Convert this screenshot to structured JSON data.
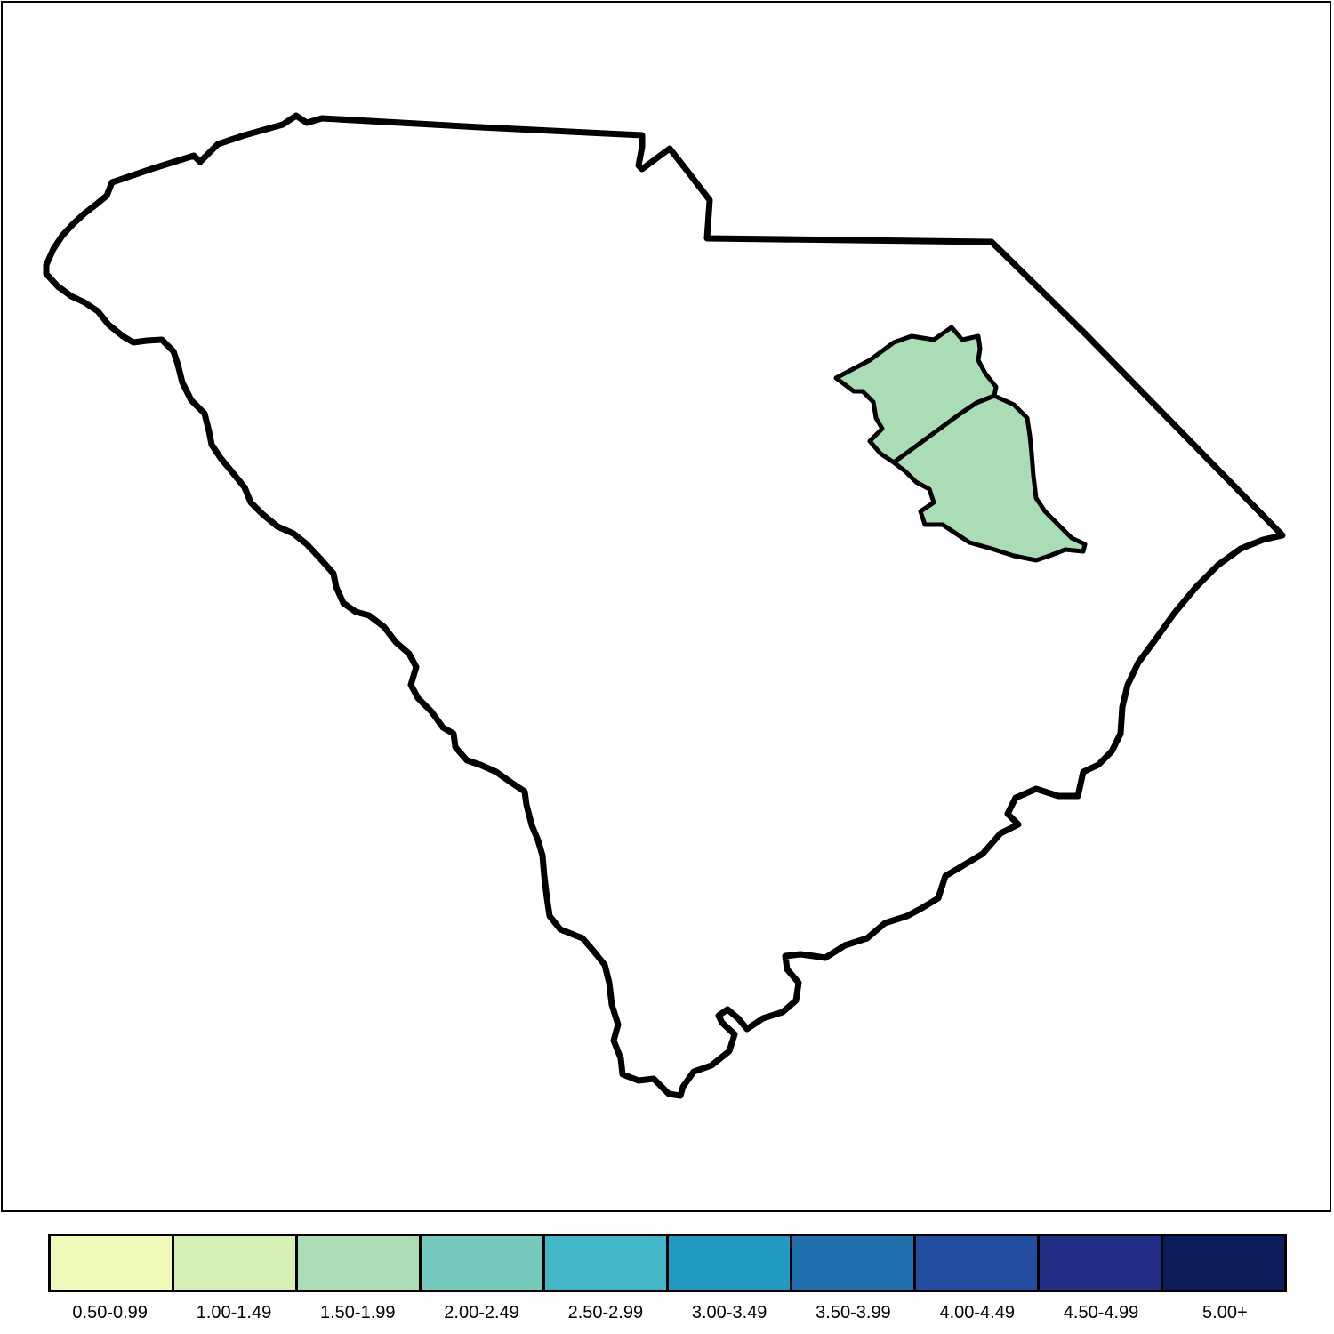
{
  "map": {
    "region": "South Carolina",
    "highlighted_regions": [
      {
        "name": "county-north",
        "class_index": 2
      },
      {
        "name": "county-south",
        "class_index": 2
      }
    ]
  },
  "legend": {
    "items": [
      {
        "label": "0.50-0.99",
        "color": "#f1f9b9"
      },
      {
        "label": "1.00-1.49",
        "color": "#d6efb2"
      },
      {
        "label": "1.50-1.99",
        "color": "#aadcb5"
      },
      {
        "label": "2.00-2.49",
        "color": "#74c8bc"
      },
      {
        "label": "2.50-2.99",
        "color": "#42b5c6"
      },
      {
        "label": "3.00-3.49",
        "color": "#2299c0"
      },
      {
        "label": "3.50-3.99",
        "color": "#2170ae"
      },
      {
        "label": "4.00-4.49",
        "color": "#234da0"
      },
      {
        "label": "4.50-4.99",
        "color": "#222d86"
      },
      {
        "label": "5.00+",
        "color": "#0b1c58"
      }
    ]
  }
}
